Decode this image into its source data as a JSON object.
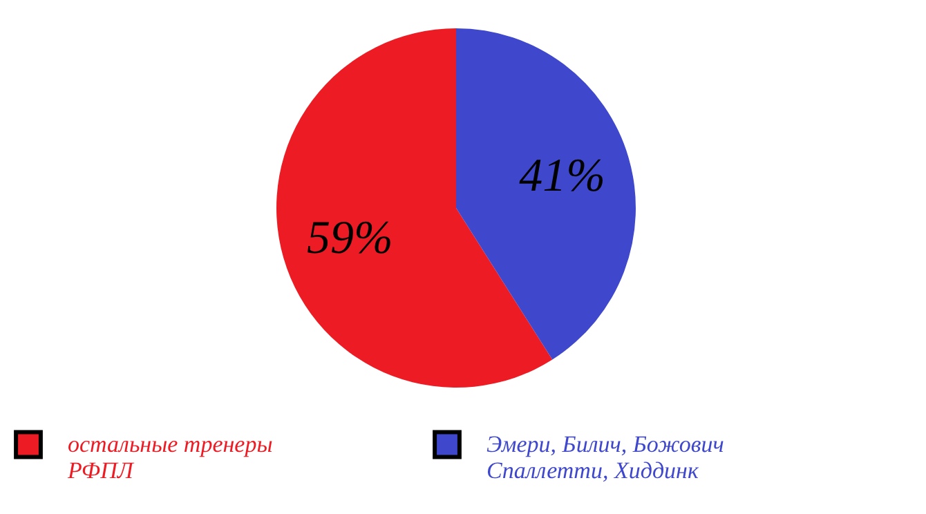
{
  "chart_data": {
    "type": "pie",
    "categories": [
      "остальные тренеры\nРФПЛ",
      "Эмери, Билич, Божович\nСпаллетти, Хиддинк"
    ],
    "values": [
      59,
      41
    ],
    "colors": [
      "#ed1c24",
      "#3f48cc"
    ],
    "value_labels": [
      "59%",
      "41%"
    ],
    "legend": "bottom"
  }
}
